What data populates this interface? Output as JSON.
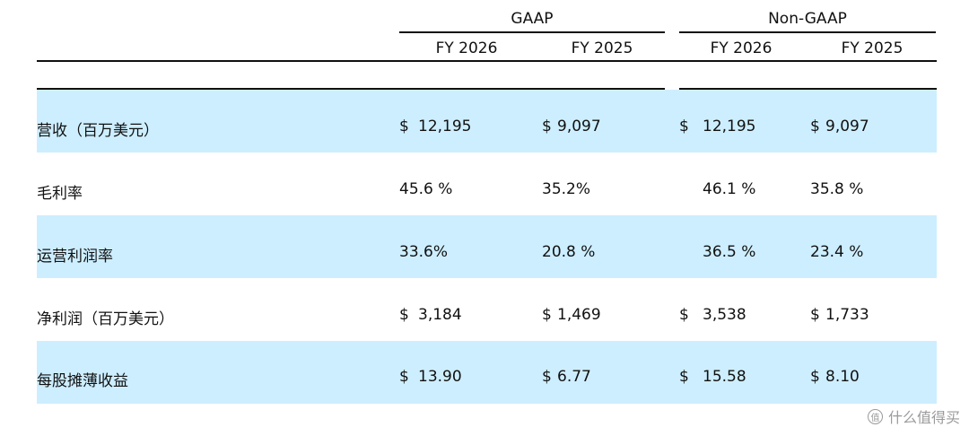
{
  "header": {
    "groups": [
      "GAAP",
      "Non-GAAP"
    ],
    "columns": [
      "FY 2026",
      "FY 2025",
      "FY 2026",
      "FY 2025"
    ]
  },
  "rows": [
    {
      "label": "营收（百万美元）",
      "cells": [
        [
          "$",
          "12,195"
        ],
        [
          "$",
          "9,097"
        ],
        [
          "$",
          "12,195"
        ],
        [
          "$",
          "9,097"
        ]
      ],
      "shaded": true
    },
    {
      "label": "毛利率",
      "cells": [
        [
          "",
          "45.6 %"
        ],
        [
          "",
          "35.2%"
        ],
        [
          "",
          "46.1 %"
        ],
        [
          "",
          "35.8 %"
        ]
      ],
      "shaded": false
    },
    {
      "label": "运营利润率",
      "cells": [
        [
          "",
          "33.6%"
        ],
        [
          "",
          "20.8 %"
        ],
        [
          "",
          "36.5 %"
        ],
        [
          "",
          "23.4 %"
        ]
      ],
      "shaded": true
    },
    {
      "label": "净利润（百万美元）",
      "cells": [
        [
          "$",
          "3,184"
        ],
        [
          "$",
          "1,469"
        ],
        [
          "$",
          "3,538"
        ],
        [
          "$",
          "1,733"
        ]
      ],
      "shaded": false
    },
    {
      "label": "每股摊薄收益",
      "cells": [
        [
          "$",
          "13.90"
        ],
        [
          "$",
          "6.77"
        ],
        [
          "$",
          "15.58"
        ],
        [
          "$",
          "8.10"
        ]
      ],
      "shaded": true
    }
  ],
  "watermark": {
    "text": "什么值得买",
    "icon": "值"
  },
  "colors": {
    "band": "#cdeeff",
    "rule": "#111111",
    "watermark": "#9a9a9a"
  }
}
